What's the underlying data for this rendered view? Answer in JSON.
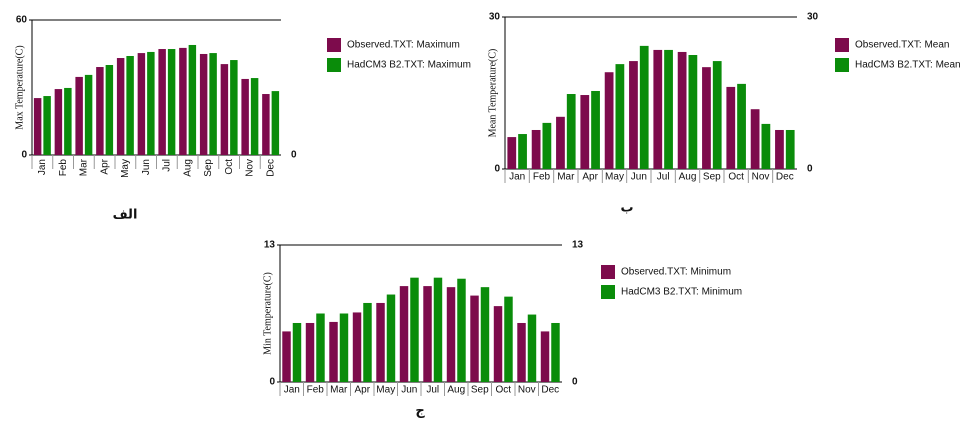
{
  "chart_data": [
    {
      "type": "bar",
      "caption": "الف",
      "ylabel": "Max Temperature(C)",
      "categories": [
        "Jan",
        "Feb",
        "Mar",
        "Apr",
        "May",
        "Jun",
        "Jul",
        "Aug",
        "Sep",
        "Oct",
        "Nov",
        "Dec"
      ],
      "series": [
        {
          "name": "Observed.TXT: Maximum",
          "color": "#7d0b4c",
          "values": [
            25.3,
            29.3,
            34.7,
            39.1,
            43.1,
            45.3,
            47.1,
            47.6,
            44.9,
            40.4,
            33.8,
            27.1
          ]
        },
        {
          "name": "HadCM3 B2.TXT: Maximum",
          "color": "#0a8c0a",
          "values": [
            26.2,
            29.8,
            35.6,
            40,
            44,
            45.8,
            47.1,
            48.9,
            45.3,
            42.2,
            34.2,
            28.4
          ]
        }
      ],
      "ylim": [
        0,
        60
      ],
      "yticks": [
        0,
        60
      ],
      "y2lim": [
        0,
        60
      ],
      "y2ticks": [
        0
      ]
    },
    {
      "type": "bar",
      "caption": "ب",
      "ylabel": "Mean Temperature(C)",
      "categories": [
        "Jan",
        "Feb",
        "Mar",
        "Apr",
        "May",
        "Jun",
        "Jul",
        "Aug",
        "Sep",
        "Oct",
        "Nov",
        "Dec"
      ],
      "series": [
        {
          "name": "Observed.TXT: Mean",
          "color": "#7d0b4c",
          "values": [
            6.3,
            7.7,
            10.3,
            14.6,
            19.1,
            21.3,
            23.5,
            23.1,
            20.1,
            16.2,
            11.8,
            7.7
          ]
        },
        {
          "name": "HadCM3 B2.TXT: Mean",
          "color": "#0a8c0a",
          "values": [
            6.9,
            9.1,
            14.8,
            15.4,
            20.7,
            24.3,
            23.5,
            22.5,
            21.3,
            16.8,
            8.9,
            7.7
          ]
        }
      ],
      "ylim": [
        0,
        30
      ],
      "yticks": [
        0,
        30
      ],
      "y2lim": [
        0,
        30
      ],
      "y2ticks": [
        0,
        30
      ]
    },
    {
      "type": "bar",
      "caption": "ج",
      "ylabel": "Min Temperature(C)",
      "categories": [
        "Jan",
        "Feb",
        "Mar",
        "Apr",
        "May",
        "Jun",
        "Jul",
        "Aug",
        "Sep",
        "Oct",
        "Nov",
        "Dec"
      ],
      "series": [
        {
          "name": "Observed.TXT: Minimum",
          "color": "#7d0b4c",
          "values": [
            4.8,
            5.6,
            5.7,
            6.6,
            7.5,
            9.1,
            9.1,
            9.0,
            8.2,
            7.2,
            5.6,
            4.8
          ]
        },
        {
          "name": "HadCM3 B2.TXT: Minimum",
          "color": "#0a8c0a",
          "values": [
            5.6,
            6.5,
            6.5,
            7.5,
            8.3,
            9.9,
            9.9,
            9.8,
            9.0,
            8.1,
            6.4,
            5.6
          ]
        }
      ],
      "ylim": [
        0,
        13
      ],
      "yticks": [
        0,
        13
      ],
      "y2lim": [
        0,
        13
      ],
      "y2ticks": [
        0,
        13
      ]
    }
  ]
}
